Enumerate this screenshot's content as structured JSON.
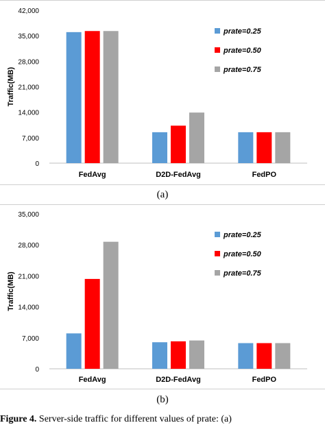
{
  "chart_data": [
    {
      "type": "bar",
      "ylabel": "Traffic(MB)",
      "categories": [
        "FedAvg",
        "D2D-FedAvg",
        "FedPO"
      ],
      "yticks": [
        "0",
        "7,000",
        "14,000",
        "21,000",
        "28,000",
        "35,000",
        "42,000"
      ],
      "ylim": [
        0,
        42000
      ],
      "series": [
        {
          "name": "prate=0.25",
          "color": "#5b9bd5",
          "values": [
            36000,
            8500,
            8500
          ]
        },
        {
          "name": "prate=0.50",
          "color": "#ff0000",
          "values": [
            36300,
            10300,
            8500
          ]
        },
        {
          "name": "prate=0.75",
          "color": "#a5a5a5",
          "values": [
            36300,
            13900,
            8500
          ]
        }
      ],
      "legend_position": "right",
      "grid": false
    },
    {
      "type": "bar",
      "ylabel": "Traffic(MB)",
      "categories": [
        "FedAvg",
        "D2D-FedAvg",
        "FedPO"
      ],
      "yticks": [
        "0",
        "7,000",
        "14,000",
        "21,000",
        "28,000",
        "35,000"
      ],
      "ylim": [
        0,
        35000
      ],
      "series": [
        {
          "name": "prate=0.25",
          "color": "#5b9bd5",
          "values": [
            8000,
            6000,
            5800
          ]
        },
        {
          "name": "prate=0.50",
          "color": "#ff0000",
          "values": [
            20300,
            6200,
            5800
          ]
        },
        {
          "name": "prate=0.75",
          "color": "#a5a5a5",
          "values": [
            28700,
            6400,
            5800
          ]
        }
      ],
      "legend_position": "right",
      "grid": false
    }
  ],
  "captions": {
    "a": "(a)",
    "b": "(b)"
  },
  "figure_caption": {
    "label": "Figure 4.",
    "text": " Server-side traffic for different values of prate: (a)"
  }
}
